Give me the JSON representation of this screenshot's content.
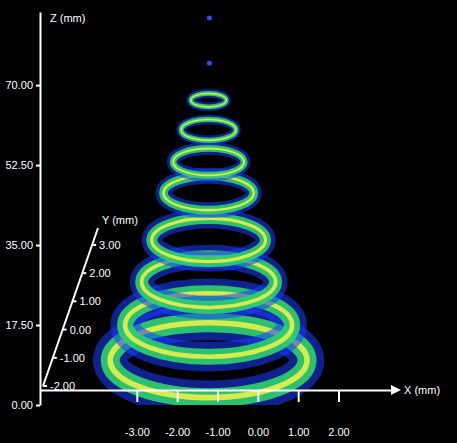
{
  "chart_data": {
    "type": "ring_stack",
    "x_label": "X (mm)",
    "y_label": "Y (mm)",
    "z_label": "Z (mm)",
    "xlim": [
      -5.4,
      3.4
    ],
    "xticks": [
      {
        "value": -3,
        "label": "-3.00"
      },
      {
        "value": -2,
        "label": "-2.00"
      },
      {
        "value": -1,
        "label": "-1.00"
      },
      {
        "value": 0,
        "label": "0.00"
      },
      {
        "value": 1,
        "label": "1.00"
      },
      {
        "value": 2,
        "label": "2.00"
      }
    ],
    "ylim": [
      -2,
      3.6
    ],
    "yticks": [
      {
        "value": -2,
        "label": "-2.00"
      },
      {
        "value": -1,
        "label": "-1.00"
      },
      {
        "value": 0,
        "label": "0.00"
      },
      {
        "value": 1,
        "label": "1.00"
      },
      {
        "value": 2,
        "label": "2.00"
      },
      {
        "value": 3,
        "label": "3.00"
      }
    ],
    "zlim": [
      0,
      86
    ],
    "zticks": [
      {
        "value": 0,
        "label": "0.00"
      },
      {
        "value": 17.5,
        "label": "17.50"
      },
      {
        "value": 35,
        "label": "35.00"
      },
      {
        "value": 52.5,
        "label": "52.50"
      },
      {
        "value": 70,
        "label": "70.00"
      }
    ],
    "rings": {
      "x": [
        -1.22,
        -1.22,
        -1.22,
        -1.22,
        -1.22,
        -1.22,
        -1.22,
        -1.22
      ],
      "z": [
        66.7,
        60.2,
        53.2,
        46.4,
        36.1,
        26.9,
        17.5,
        9.8
      ],
      "radius": [
        0.44,
        0.68,
        0.88,
        1.12,
        1.41,
        1.66,
        2.07,
        2.44
      ]
    },
    "points": {
      "x": [
        -1.2,
        -1.2
      ],
      "z": [
        84.7,
        74.8
      ]
    }
  }
}
